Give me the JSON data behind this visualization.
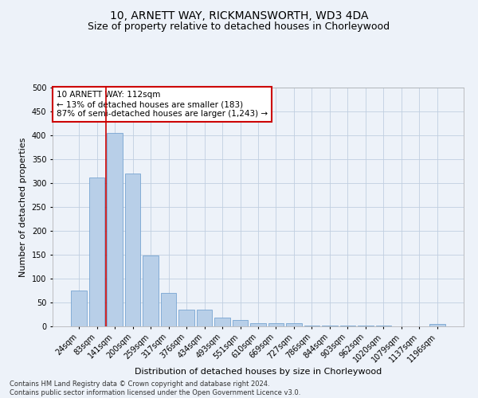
{
  "title": "10, ARNETT WAY, RICKMANSWORTH, WD3 4DA",
  "subtitle": "Size of property relative to detached houses in Chorleywood",
  "xlabel": "Distribution of detached houses by size in Chorleywood",
  "ylabel": "Number of detached properties",
  "categories": [
    "24sqm",
    "83sqm",
    "141sqm",
    "200sqm",
    "259sqm",
    "317sqm",
    "376sqm",
    "434sqm",
    "493sqm",
    "551sqm",
    "610sqm",
    "669sqm",
    "727sqm",
    "786sqm",
    "844sqm",
    "903sqm",
    "962sqm",
    "1020sqm",
    "1079sqm",
    "1137sqm",
    "1196sqm"
  ],
  "values": [
    75,
    312,
    405,
    320,
    148,
    70,
    35,
    35,
    18,
    13,
    7,
    7,
    6,
    2,
    2,
    2,
    1,
    1,
    0,
    0,
    5
  ],
  "bar_color": "#b8cfe8",
  "bar_edge_color": "#6699cc",
  "vline_color": "#cc0000",
  "vline_pos": 1.5,
  "annotation_text": "10 ARNETT WAY: 112sqm\n← 13% of detached houses are smaller (183)\n87% of semi-detached houses are larger (1,243) →",
  "annotation_box_color": "#ffffff",
  "annotation_box_edge": "#cc0000",
  "ylim": [
    0,
    500
  ],
  "yticks": [
    0,
    50,
    100,
    150,
    200,
    250,
    300,
    350,
    400,
    450,
    500
  ],
  "grid_color": "#c0cfe0",
  "background_color": "#edf2f9",
  "footer_line1": "Contains HM Land Registry data © Crown copyright and database right 2024.",
  "footer_line2": "Contains public sector information licensed under the Open Government Licence v3.0.",
  "title_fontsize": 10,
  "subtitle_fontsize": 9,
  "axis_label_fontsize": 8,
  "tick_fontsize": 7,
  "annotation_fontsize": 7.5,
  "footer_fontsize": 6
}
